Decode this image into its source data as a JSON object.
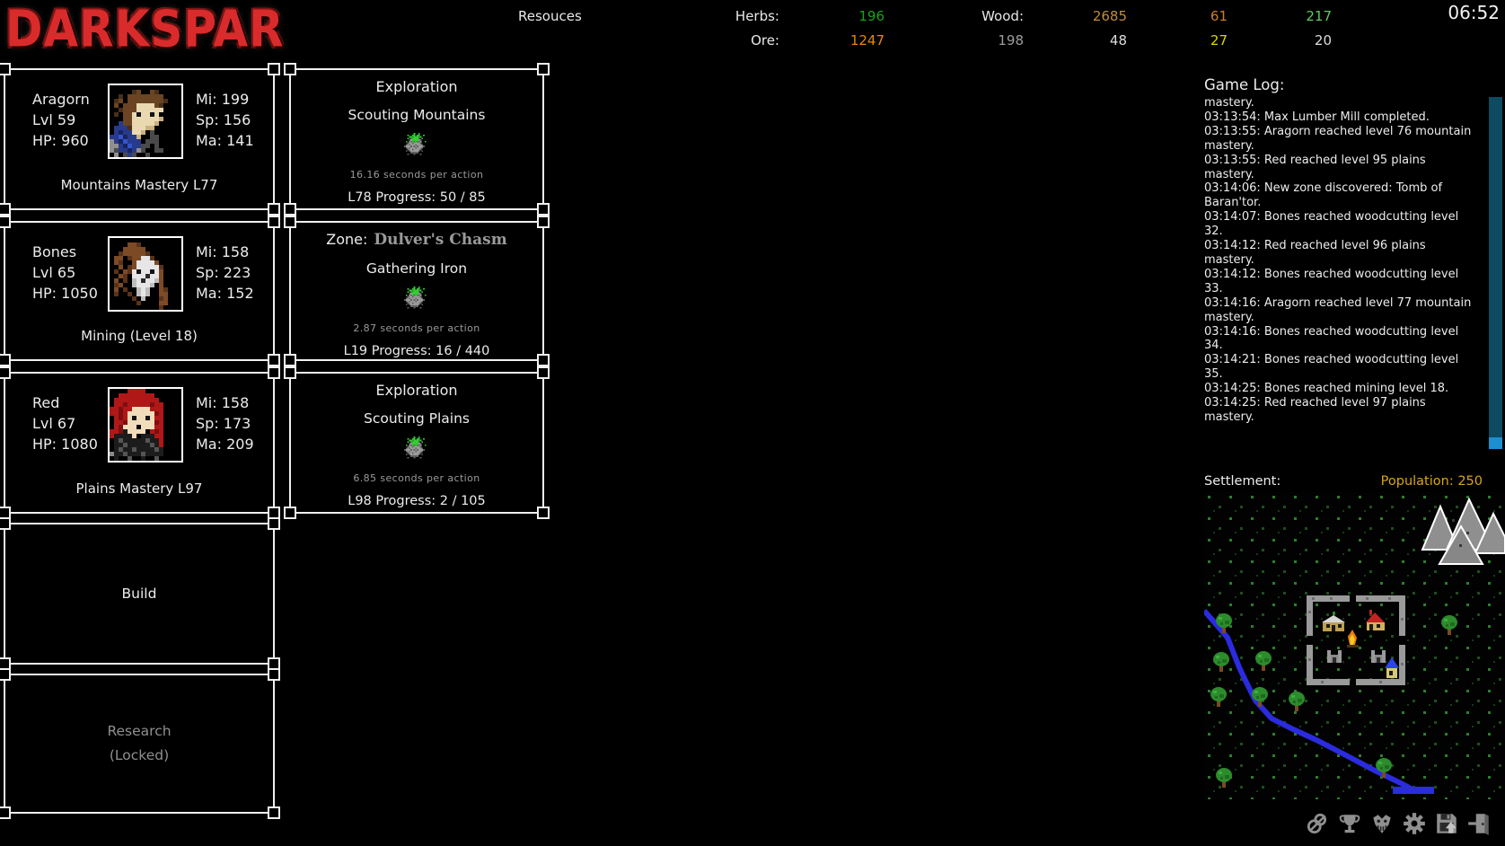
{
  "app": {
    "logo_text": "DARKSPAR",
    "clock": "06:52"
  },
  "resources": {
    "title": "Resouces",
    "rows": [
      {
        "cells": [
          {
            "text": "Herbs:",
            "color": "#e8e8e8"
          },
          {
            "text": "196",
            "color": "#18a418"
          },
          {
            "text": "Wood:",
            "color": "#e8e8e8"
          },
          {
            "text": "2685",
            "color": "#c08a3e"
          },
          {
            "text": "61",
            "color": "#cc7f26"
          },
          {
            "text": "217",
            "color": "#63c963"
          }
        ]
      },
      {
        "cells": [
          {
            "text": "Ore:",
            "color": "#e8e8e8"
          },
          {
            "text": "1247",
            "color": "#e8860e"
          },
          {
            "text": "198",
            "color": "#9d9d9d"
          },
          {
            "text": "48",
            "color": "#dcdcdc"
          },
          {
            "text": "27",
            "color": "#d6d600"
          },
          {
            "text": "20",
            "color": "#dcdcdc"
          }
        ]
      }
    ]
  },
  "characters": [
    {
      "name": "Aragorn",
      "level": "Lvl 59",
      "hp": "HP: 960",
      "mi": "Mi: 199",
      "sp": "Sp: 156",
      "ma": "Ma: 141",
      "activity": "Mountains Mastery L77",
      "portrait_icon": "aragorn-pixel-portrait",
      "pixels": {
        "palette": {
          "H": "#6b4423",
          "h": "#49301a",
          "F": "#ead9b0",
          "f": "#c9b183",
          "E": "#141414",
          "N": "#273a8c",
          "n": "#18255e",
          "B": "#3355cc",
          "G": "#909090",
          "g": "#4a4a4a"
        },
        "rows": [
          "................",
          ".....hH..Hh.....",
          "..h.HHHHHHHH....",
          ".hH.HHHHHHHHh...",
          ".H.HHHFFFFHh....",
          "..hHHHFFFFFF....",
          ".h.HHFEFFEF.....",
          "...HHFFFFFFf....",
          "..NHHFFFFFf.....",
          ".NNNhFFFff......",
          ".NnNNFFf.g......",
          "NNBnNNf..gg.....",
          "GNnBNNN.ggg.....",
          "GGNnBNNgg.g.....",
          "GgNNnNGg..gg....",
          ".G.gNg..g......."
        ]
      }
    },
    {
      "name": "Bones",
      "level": "Lvl 65",
      "hp": "HP: 1050",
      "mi": "Mi: 158",
      "sp": "Sp: 223",
      "ma": "Ma: 152",
      "activity": "Mining (Level 18)",
      "portrait_icon": "bones-pixel-portrait",
      "pixels": {
        "palette": {
          "B": "#7d4a26",
          "b": "#5a3319",
          "S": "#e6e6e6",
          "s": "#bdbdbd",
          "E": "#141414",
          "d": "#2a2a2a"
        },
        "rows": [
          "................",
          "....BBb.........",
          "...BBBBB........",
          "..bBBBBBb.......",
          ".BB.bBBSSb......",
          ".Bb..BSSSSB.....",
          "..B.bBSSSSSb....",
          ".b.BbSESSESB....",
          "..Bb.SSSdSSB....",
          ".B.b.sSdSSsB....",
          ".bB..sSSSs.B....",
          ".B.b..sSs..Bb...",
          ".b..b.sSs..BB...",
          ".....b.s...bB...",
          "......b....BB...",
          "...........b...."
        ]
      }
    },
    {
      "name": "Red",
      "level": "Lvl 67",
      "hp": "HP: 1080",
      "mi": "Mi: 158",
      "sp": "Sp: 173",
      "ma": "Ma: 209",
      "activity": "Plains Mastery L97",
      "portrait_icon": "red-pixel-portrait",
      "pixels": {
        "palette": {
          "R": "#b01818",
          "r": "#7d0f0f",
          "F": "#f2ddbb",
          "E": "#141414",
          "K": "#1c1c1c",
          "G": "#8a8a8a",
          "g": "#555555"
        },
        "rows": [
          "....RRRR........",
          "..RRRRRRRR......",
          ".RRRRRRRRRR.....",
          ".RRrRRRRRrRR....",
          "RRrRRFFFFRRR....",
          "RRrRFFFFFFrR....",
          ".RrRFEFFEFRR....",
          ".RRrFFFFFFrR....",
          ".RrFFFfFFFRR....",
          "RRrKFFFFfRrR....",
          "RKKKKFfKKKRR....",
          ".KgKKKKKgKKR....",
          ".KKgKKKKKgKR....",
          ".KgKKgKKKKgK....",
          "GKKgKKKgKKKK....",
          ".K..g..K..g....."
        ]
      }
    }
  ],
  "spinner": {
    "icon": "action-spinner-icon",
    "pixels": {
      "palette": {
        "G": "#9a9a9a",
        "g": "#5f5f5f",
        "L": "#33cc33",
        "l": "#1f8f1f"
      },
      "rows": [
        "......L..L......",
        "..L..LL.LL..L...",
        "...LLlLLLlL.....",
        "..L.gLLLLg.L....",
        "...gGLLLLGg.....",
        ".L.GgLlLlgG..L..",
        "..gGGgGGGGg.....",
        ".gGgGGGgGGGg....",
        "gGGGgGgGgGGGg...",
        ".gGgGGGgGGGg....",
        "..gGGgGGGGg.....",
        ".g.gGGGGGg.g....",
        "....ggggg.......",
        "..g...g...g.....",
        "................",
        "................"
      ]
    }
  },
  "tasks": [
    {
      "heading": "Exploration",
      "zone_name": "",
      "subtitle": "Scouting Mountains",
      "speed": "16.16 seconds per action",
      "progress": "L78 Progress: 50 / 85"
    },
    {
      "heading": "Zone:",
      "zone_name": "Dulver's Chasm",
      "subtitle": "Gathering Iron",
      "speed": "2.87 seconds per action",
      "progress": "L19 Progress: 16 / 440"
    },
    {
      "heading": "Exploration",
      "zone_name": "",
      "subtitle": "Scouting Plains",
      "speed": "6.85 seconds per action",
      "progress": "L98 Progress: 2 / 105"
    }
  ],
  "panels": {
    "build_label": "Build",
    "research_label": "Research",
    "research_status": "(Locked)"
  },
  "game_log": {
    "title": "Game Log:",
    "entries": [
      "mastery.",
      "03:13:54: Max Lumber Mill completed.",
      "03:13:55: Aragorn reached level 76 mountain mastery.",
      "03:13:55: Red reached level 95 plains mastery.",
      "03:14:06: New zone discovered: Tomb of Baran'tor.",
      "03:14:07: Bones reached woodcutting level 32.",
      "03:14:12: Red reached level 96 plains mastery.",
      "03:14:12: Bones reached woodcutting level 33.",
      "03:14:16: Aragorn reached level 77 mountain mastery.",
      "03:14:16: Bones reached woodcutting level 34.",
      "03:14:21: Bones reached woodcutting level 35.",
      "03:14:25: Bones reached mining level 18.",
      "03:14:25: Red reached level 97 plains mastery."
    ]
  },
  "settlement": {
    "label": "Settlement:",
    "population": "Population: 250"
  },
  "map_colors": {
    "grass_dot": "#2e7d2e",
    "river": "#2b2be0",
    "wall": "#9a9a9a",
    "mountain": "#8f8f8f",
    "snow": "#ffffff",
    "tree": "#2c8c2c"
  },
  "footer_icons": [
    {
      "name": "scroll-icon"
    },
    {
      "name": "trophy-icon"
    },
    {
      "name": "demon-icon"
    },
    {
      "name": "gear-icon"
    },
    {
      "name": "save-icon"
    },
    {
      "name": "exit-icon"
    }
  ],
  "scrollbar": {
    "track_color": "#0e4a61",
    "thumb_color": "#1b8fd0"
  }
}
